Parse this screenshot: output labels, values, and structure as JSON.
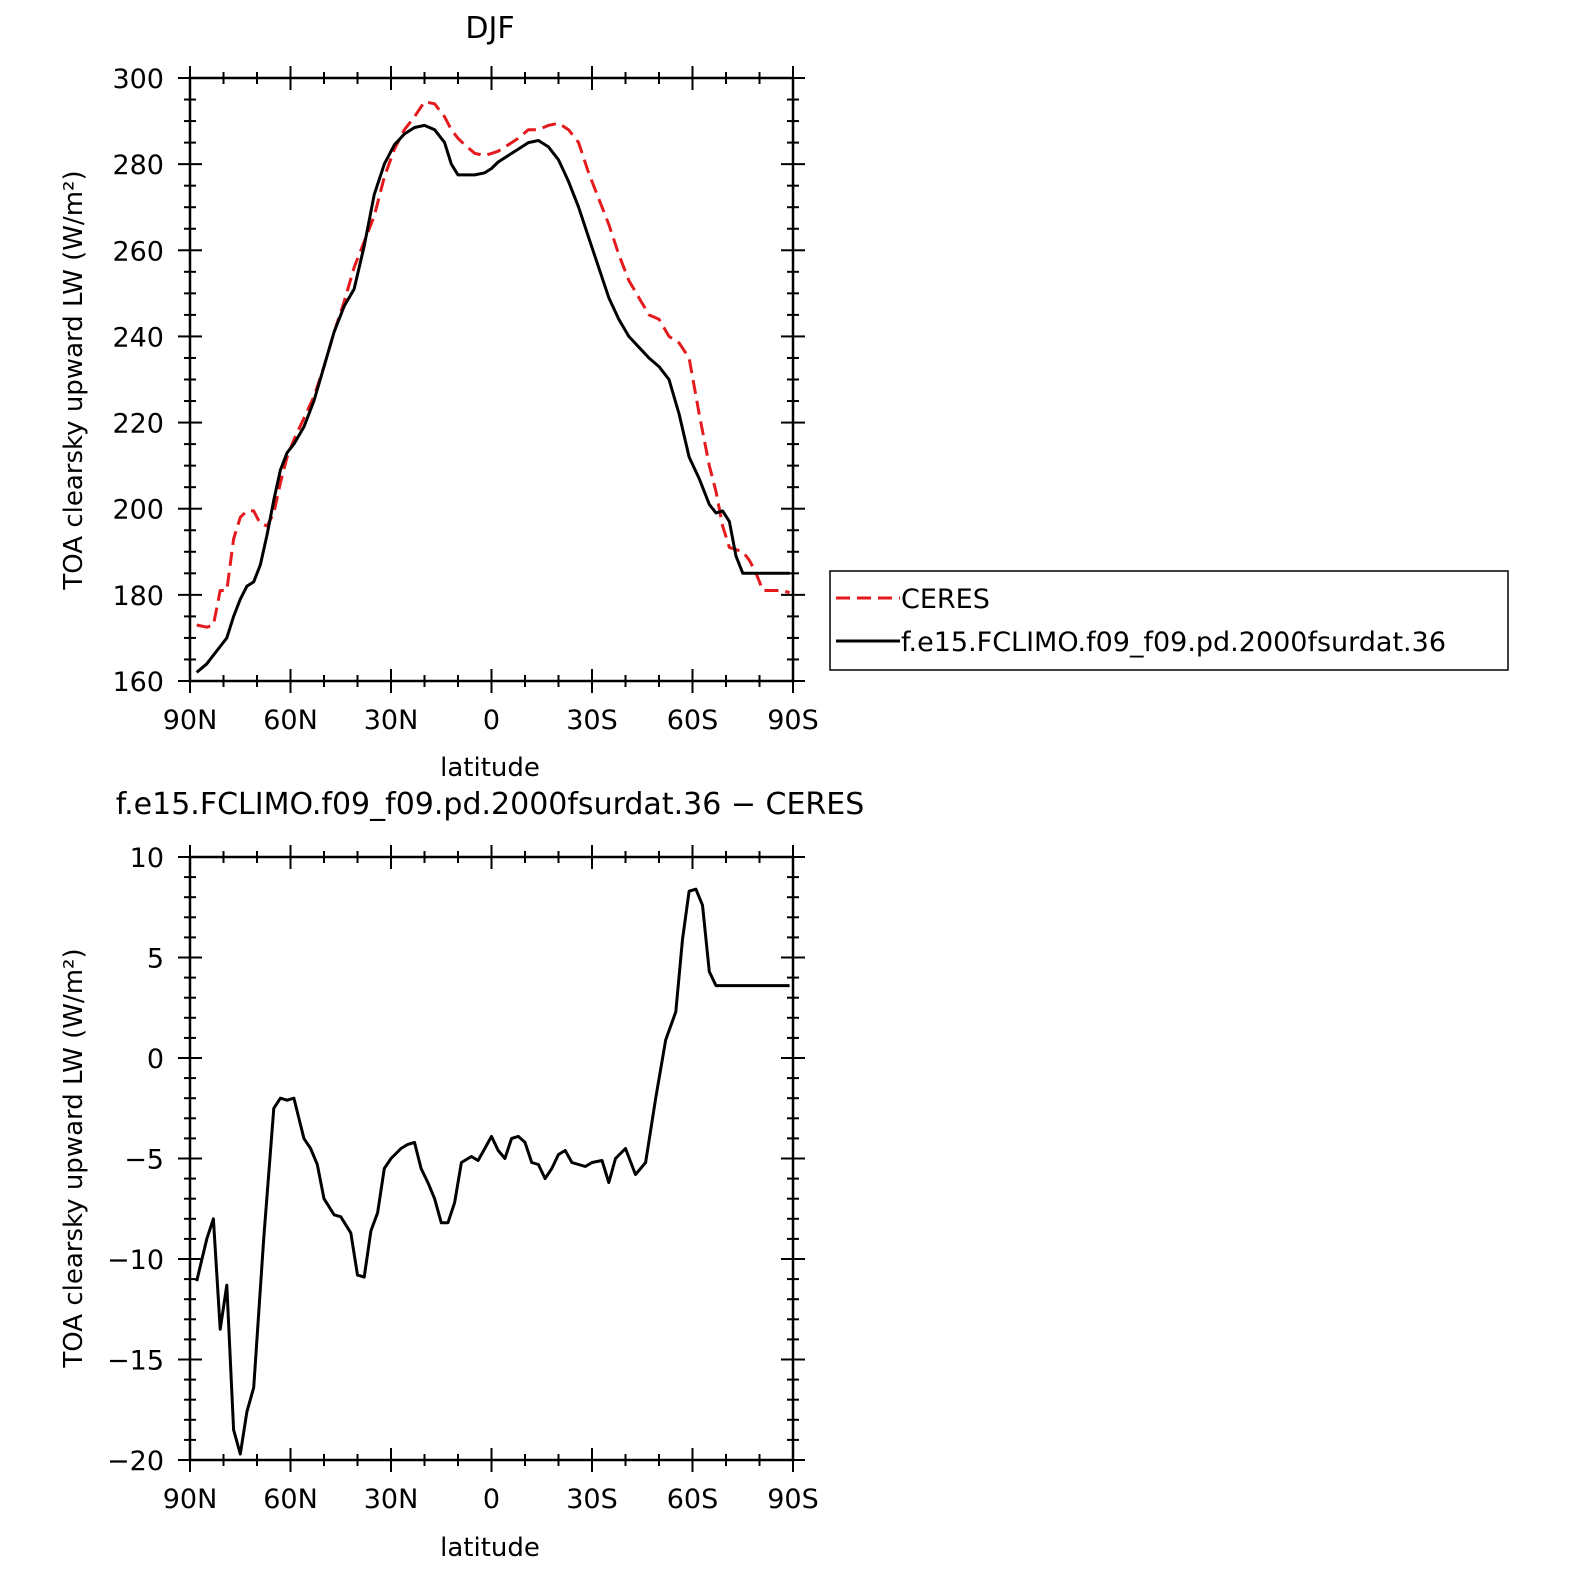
{
  "chart_data": [
    {
      "type": "line",
      "title": "DJF",
      "xlabel": "latitude",
      "ylabel": "TOA clearsky upward LW (W/m²)",
      "xlim": [
        90,
        -90
      ],
      "ylim": [
        160,
        300
      ],
      "xticks": [
        90,
        60,
        30,
        0,
        -30,
        -60,
        -90
      ],
      "xtick_labels": [
        "90N",
        "60N",
        "30N",
        "0",
        "30S",
        "60S",
        "90S"
      ],
      "yticks": [
        160,
        180,
        200,
        220,
        240,
        260,
        280,
        300
      ],
      "ytick_labels": [
        "160",
        "180",
        "200",
        "220",
        "240",
        "260",
        "280",
        "300"
      ],
      "legend_position": "right",
      "series": [
        {
          "name": "CERES",
          "color": "#e41a1c",
          "style": "dashed",
          "x": [
            88,
            85,
            83,
            81,
            79,
            77,
            75,
            73,
            71,
            69,
            67,
            65,
            63,
            61,
            59,
            56,
            53,
            50,
            47,
            44,
            41,
            38,
            35,
            32,
            29,
            26,
            23,
            20,
            17,
            14,
            12,
            10,
            8,
            5,
            2,
            0,
            -2,
            -5,
            -8,
            -11,
            -14,
            -17,
            -20,
            -23,
            -26,
            -29,
            -32,
            -35,
            -38,
            -41,
            -44,
            -47,
            -50,
            -53,
            -56,
            -59,
            -62,
            -65,
            -67,
            -69,
            -71,
            -73,
            -75,
            -77,
            -79,
            -81,
            -83,
            -85,
            -87,
            -89
          ],
          "y": [
            173,
            172.5,
            173,
            181,
            181,
            193,
            198,
            199.5,
            199.5,
            196.5,
            196,
            199,
            206,
            212,
            216,
            221,
            226,
            233,
            241,
            248,
            256,
            262,
            268,
            277,
            283.5,
            288,
            291,
            294.5,
            294,
            291,
            288,
            286,
            284.5,
            282.5,
            282,
            282.5,
            283,
            284.5,
            286,
            288,
            288,
            289,
            289.5,
            288,
            285,
            278,
            272,
            266,
            259,
            253,
            249,
            245,
            244,
            240,
            238.5,
            235,
            222,
            210,
            204,
            196,
            191,
            190.5,
            190,
            188,
            185,
            181,
            181,
            181,
            181,
            180.5
          ]
        },
        {
          "name": "f.e15.FCLIMO.f09_f09.pd.2000fsurdat.36",
          "color": "#000000",
          "style": "solid",
          "x": [
            88,
            85,
            83,
            81,
            79,
            77,
            75,
            73,
            71,
            69,
            67,
            65,
            63,
            61,
            59,
            56,
            53,
            50,
            47,
            44,
            41,
            38,
            35,
            32,
            29,
            26,
            23,
            20,
            17,
            14,
            12,
            10,
            8,
            5,
            2,
            0,
            -2,
            -5,
            -8,
            -11,
            -14,
            -17,
            -20,
            -23,
            -26,
            -29,
            -32,
            -35,
            -38,
            -41,
            -44,
            -47,
            -50,
            -53,
            -56,
            -59,
            -62,
            -65,
            -67,
            -69,
            -71,
            -73,
            -75,
            -77,
            -79,
            -81,
            -83,
            -85,
            -87,
            -89
          ],
          "y": [
            162,
            164,
            166,
            168,
            170,
            175,
            179,
            182,
            183,
            187,
            194,
            202,
            209,
            213,
            215,
            219,
            225,
            233,
            241,
            247,
            251,
            261,
            273,
            280,
            284.5,
            287,
            288.5,
            289,
            288,
            285,
            280,
            277.5,
            277.5,
            277.5,
            278,
            279,
            280.5,
            282,
            283.5,
            285,
            285.5,
            284,
            281,
            276,
            270,
            263,
            256,
            249,
            244,
            240,
            237.5,
            235,
            233,
            230,
            222,
            212,
            207,
            201,
            199,
            199.5,
            197,
            189,
            185,
            185,
            185,
            185,
            185,
            185,
            185,
            185
          ]
        }
      ]
    },
    {
      "type": "line",
      "title": "f.e15.FCLIMO.f09_f09.pd.2000fsurdat.36 − CERES",
      "xlabel": "latitude",
      "ylabel": "TOA clearsky upward LW (W/m²)",
      "xlim": [
        90,
        -90
      ],
      "ylim": [
        -20,
        10
      ],
      "xticks": [
        90,
        60,
        30,
        0,
        -30,
        -60,
        -90
      ],
      "xtick_labels": [
        "90N",
        "60N",
        "30N",
        "0",
        "30S",
        "60S",
        "90S"
      ],
      "yticks": [
        -20,
        -15,
        -10,
        -5,
        0,
        5,
        10
      ],
      "ytick_labels": [
        "−20",
        "−15",
        "−10",
        "−5",
        "0",
        "5",
        "10"
      ],
      "series": [
        {
          "color": "#000000",
          "style": "solid",
          "x": [
            88,
            85,
            83,
            81,
            79,
            77,
            75,
            73,
            71,
            68,
            65,
            63,
            61,
            59,
            56,
            54,
            52,
            50,
            47,
            45,
            42,
            40,
            38,
            36,
            34,
            32,
            30,
            27,
            25,
            23,
            21,
            19,
            17,
            15,
            13,
            11,
            9,
            6,
            4,
            2,
            0,
            -2,
            -4,
            -6,
            -8,
            -10,
            -12,
            -14,
            -16,
            -18,
            -20,
            -22,
            -24,
            -26,
            -28,
            -30,
            -33,
            -35,
            -37,
            -40,
            -43,
            -46,
            -49,
            -52,
            -55,
            -57,
            -59,
            -61,
            -63,
            -65,
            -67,
            -69,
            -71,
            -73,
            -75,
            -77,
            -79,
            -81,
            -83,
            -85,
            -87,
            -89
          ],
          "y": [
            -11.1,
            -9,
            -8,
            -13.5,
            -11.3,
            -18.5,
            -19.7,
            -17.6,
            -16.4,
            -9,
            -2.5,
            -2,
            -2.1,
            -2,
            -4,
            -4.5,
            -5.3,
            -7,
            -7.8,
            -7.9,
            -8.7,
            -10.8,
            -10.9,
            -8.6,
            -7.7,
            -5.5,
            -5,
            -4.5,
            -4.3,
            -4.2,
            -5.5,
            -6.2,
            -7,
            -8.2,
            -8.2,
            -7.2,
            -5.2,
            -4.9,
            -5.1,
            -4.5,
            -3.9,
            -4.6,
            -5,
            -4,
            -3.9,
            -4.2,
            -5.2,
            -5.3,
            -6,
            -5.5,
            -4.8,
            -4.6,
            -5.2,
            -5.3,
            -5.4,
            -5.2,
            -5.1,
            -6.2,
            -5,
            -4.5,
            -5.8,
            -5.2,
            -2,
            0.9,
            2.3,
            5.9,
            8.3,
            8.4,
            7.6,
            4.3,
            3.6,
            3.6,
            3.6,
            3.6,
            3.6,
            3.6,
            3.6,
            3.6,
            3.6,
            3.6,
            3.6,
            3.6
          ]
        }
      ]
    }
  ]
}
